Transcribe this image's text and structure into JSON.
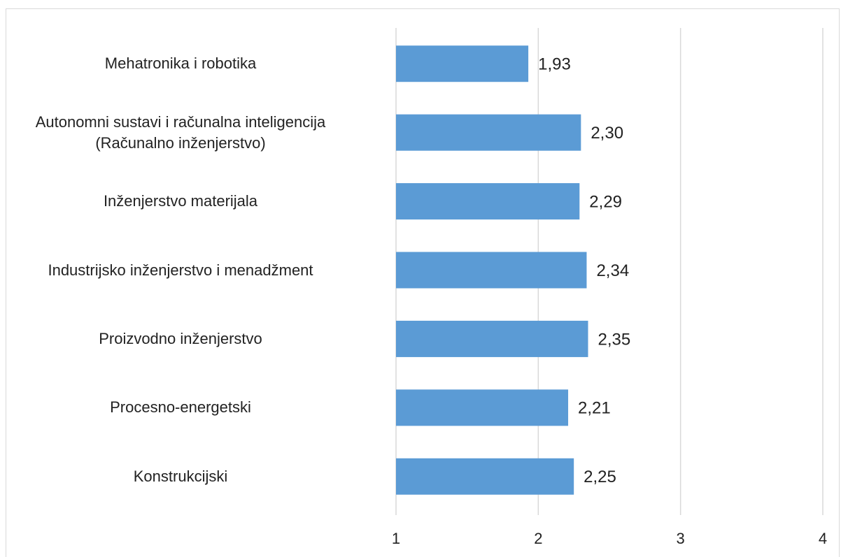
{
  "chart_data": {
    "type": "barh",
    "categories": [
      "Mehatronika i robotika",
      "Autonomni sustavi i računalna inteligencija\n(Računalno inženjerstvo)",
      "Inženjerstvo materijala",
      "Industrijsko inženjerstvo i menadžment",
      "Proizvodno inženjerstvo",
      "Procesno-energetski",
      "Konstrukcijski"
    ],
    "values": [
      1.93,
      2.3,
      2.29,
      2.34,
      2.35,
      2.21,
      2.25
    ],
    "value_labels": [
      "1,93",
      "2,30",
      "2,29",
      "2,34",
      "2,35",
      "2,21",
      "2,25"
    ],
    "color": "#5b9bd5",
    "xlim": [
      1,
      4
    ],
    "xticks": [
      1,
      2,
      3,
      4
    ],
    "grid": true
  }
}
